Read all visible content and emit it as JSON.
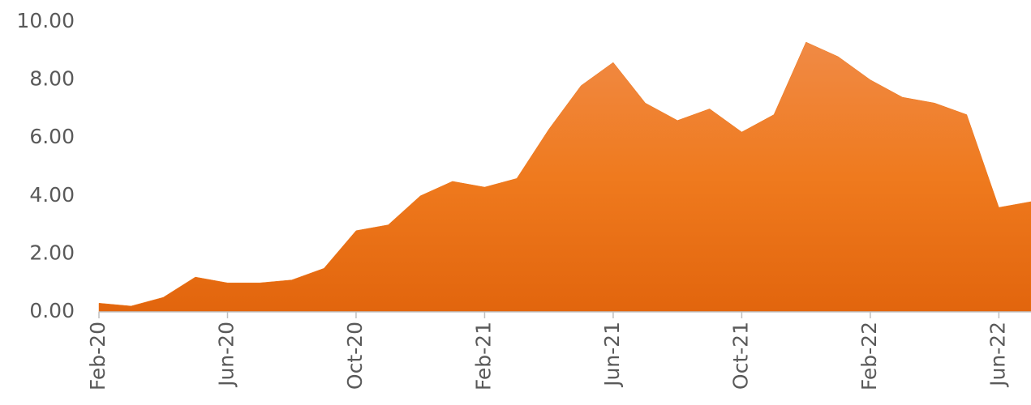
{
  "chart_data": {
    "type": "area",
    "color": "#ec7418",
    "x": [
      "2020-02",
      "2020-03",
      "2020-04",
      "2020-05",
      "2020-06",
      "2020-07",
      "2020-08",
      "2020-09",
      "2020-10",
      "2020-11",
      "2020-12",
      "2021-01",
      "2021-02",
      "2021-03",
      "2021-04",
      "2021-05",
      "2021-06",
      "2021-07",
      "2021-08",
      "2021-09",
      "2021-10",
      "2021-11",
      "2021-12",
      "2022-01",
      "2022-02",
      "2022-03",
      "2022-04",
      "2022-05",
      "2022-06",
      "2022-07"
    ],
    "values": [
      0.3,
      0.2,
      0.5,
      1.2,
      1.0,
      1.0,
      1.1,
      1.5,
      2.8,
      3.0,
      4.0,
      4.5,
      4.3,
      4.6,
      6.3,
      7.8,
      8.6,
      7.2,
      6.6,
      7.0,
      6.2,
      6.8,
      9.3,
      8.8,
      8.0,
      7.4,
      7.2,
      6.8,
      3.6,
      3.8
    ],
    "xlim": [
      "2020-02",
      "2022-07"
    ],
    "xticks": [
      {
        "value": "2020-02",
        "label": "Feb-20"
      },
      {
        "value": "2020-06",
        "label": "Jun-20"
      },
      {
        "value": "2020-10",
        "label": "Oct-20"
      },
      {
        "value": "2021-02",
        "label": "Feb-21"
      },
      {
        "value": "2021-06",
        "label": "Jun-21"
      },
      {
        "value": "2021-10",
        "label": "Oct-21"
      },
      {
        "value": "2022-02",
        "label": "Feb-22"
      },
      {
        "value": "2022-06",
        "label": "Jun-22"
      }
    ],
    "ylim": [
      0,
      10
    ],
    "yticks": [
      {
        "value": 0,
        "label": "0.00"
      },
      {
        "value": 2,
        "label": "2.00"
      },
      {
        "value": 4,
        "label": "4.00"
      },
      {
        "value": 6,
        "label": "6.00"
      },
      {
        "value": 8,
        "label": "8.00"
      },
      {
        "value": 10,
        "label": "10.00"
      }
    ],
    "grid": false
  }
}
